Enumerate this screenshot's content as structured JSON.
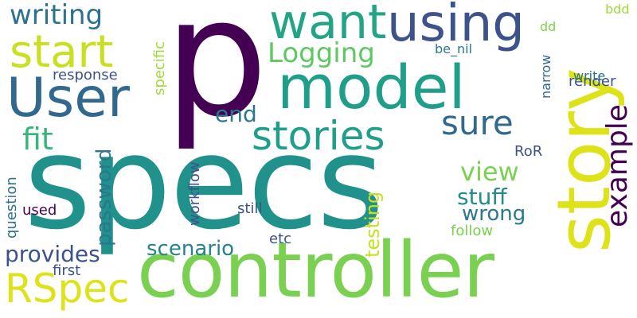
{
  "words": {
    "p": {
      "text": "p",
      "color": "#440154"
    },
    "specs": {
      "text": "specs",
      "color": "#21918c"
    },
    "controller": {
      "text": "controller",
      "color": "#7ad151"
    },
    "story": {
      "text": "story",
      "color": "#dde318"
    },
    "model": {
      "text": "model",
      "color": "#1f9e89"
    },
    "user": {
      "text": "User",
      "color": "#31688e"
    },
    "using": {
      "text": "using",
      "color": "#3b528b"
    },
    "want": {
      "text": "want",
      "color": "#21a585"
    },
    "start": {
      "text": "start",
      "color": "#c8e020"
    },
    "writing": {
      "text": "writing",
      "color": "#2c728e"
    },
    "stories": {
      "text": "stories",
      "color": "#1f9e89"
    },
    "sure": {
      "text": "sure",
      "color": "#31688e"
    },
    "example": {
      "text": "example",
      "color": "#440154"
    },
    "logging": {
      "text": "Logging",
      "color": "#5ec962"
    },
    "rspec": {
      "text": "RSpec",
      "color": "#dde318"
    },
    "fit": {
      "text": "fit",
      "color": "#35b779"
    },
    "end": {
      "text": "end",
      "color": "#2a788e"
    },
    "view": {
      "text": "view",
      "color": "#7ad151"
    },
    "password": {
      "text": "password",
      "color": "#2a788e"
    },
    "provides": {
      "text": "provides",
      "color": "#3b528b"
    },
    "scenario": {
      "text": "scenario",
      "color": "#26828e"
    },
    "stuff": {
      "text": "stuff",
      "color": "#228c8d"
    },
    "wrong": {
      "text": "wrong",
      "color": "#2a788e"
    },
    "testing": {
      "text": "testing",
      "color": "#c8e020"
    },
    "response": {
      "text": "response",
      "color": "#3b528b"
    },
    "specific": {
      "text": "specific",
      "color": "#a0da39"
    },
    "workflow": {
      "text": "workflow",
      "color": "#3b528b"
    },
    "question": {
      "text": "question",
      "color": "#2c728e"
    },
    "used": {
      "text": "used",
      "color": "#440154"
    },
    "still": {
      "text": "still",
      "color": "#3b528b"
    },
    "etc": {
      "text": "etc",
      "color": "#3b528b"
    },
    "follow": {
      "text": "follow",
      "color": "#7ad151"
    },
    "first": {
      "text": "first",
      "color": "#3b528b"
    },
    "render": {
      "text": "render",
      "color": "#3b528b"
    },
    "write": {
      "text": "write",
      "color": "#2c728e"
    },
    "narrow": {
      "text": "narrow",
      "color": "#31688e"
    },
    "dd": {
      "text": "dd",
      "color": "#7ad151"
    },
    "be_nil": {
      "text": "be_nil",
      "color": "#2a788e"
    },
    "bdd": {
      "text": "bdd",
      "color": "#a0da39"
    },
    "ror": {
      "text": "RoR",
      "color": "#3b528b"
    }
  }
}
